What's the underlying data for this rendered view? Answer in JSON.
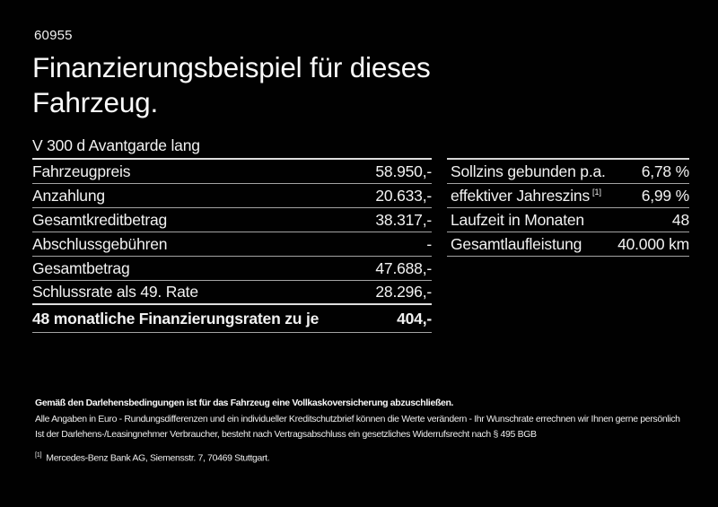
{
  "page": {
    "id_number": "60955",
    "title_line1": "Finanzierungsbeispiel für dieses",
    "title_line2": "Fahrzeug.",
    "model": "V 300 d Avantgarde lang"
  },
  "left_table": {
    "rows": [
      {
        "label": "Fahrzeugpreis",
        "value": "58.950,-"
      },
      {
        "label": "Anzahlung",
        "value": "20.633,-"
      },
      {
        "label": "Gesamtkreditbetrag",
        "value": "38.317,-"
      },
      {
        "label": "Abschlussgebühren",
        "value": "-"
      },
      {
        "label": "Gesamtbetrag",
        "value": "47.688,-"
      },
      {
        "label": "Schlussrate als 49. Rate",
        "value": "28.296,-"
      }
    ],
    "total_row": {
      "label": "48 monatliche Finanzierungsraten zu je",
      "value": "404,-"
    }
  },
  "right_table": {
    "rows": [
      {
        "label": "Sollzins gebunden p.a.",
        "footnote": "",
        "value": "6,78 %"
      },
      {
        "label": "effektiver Jahreszins",
        "footnote": "[1]",
        "value": "6,99 %"
      },
      {
        "label": "Laufzeit in Monaten",
        "footnote": "",
        "value": "48"
      },
      {
        "label": "Gesamtlaufleistung",
        "footnote": "",
        "value": "40.000 km"
      }
    ]
  },
  "footer": {
    "bold_note": "Gemäß den Darlehensbedingungen ist für das Fahrzeug eine Vollkaskoversicherung abzuschließen.",
    "note2": "Alle Angaben in Euro - Rundungsdifferenzen und ein individueller Kreditschutzbrief können die Werte verändern - Ihr Wunschrate errechnen wir Ihnen gerne persönlich",
    "note3": "Ist der Darlehens-/Leasingnehmer Verbraucher, besteht nach Vertragsabschluss ein gesetzliches Widerrufsrecht nach § 495 BGB",
    "footnote_marker": "[1]",
    "footnote_text": "Mercedes-Benz Bank AG, Siemensstr. 7, 70469 Stuttgart."
  },
  "colors": {
    "background": "#010101",
    "text": "#f2f2f2",
    "separator": "#a3a3a3",
    "separator_strong": "#dedede"
  }
}
